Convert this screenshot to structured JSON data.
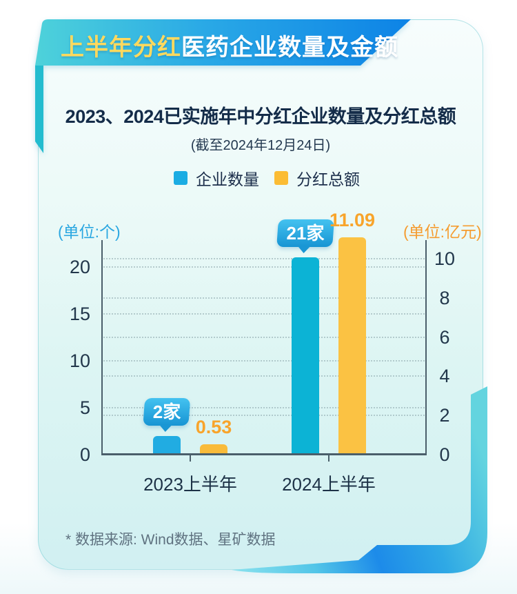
{
  "banner": {
    "highlight": "上半年分红",
    "rest": "医药企业数量及金额"
  },
  "header": {
    "title": "2023、2024已实施年中分红企业数量及分红总额",
    "subtitle": "(截至2024年12月24日)"
  },
  "footnote": {
    "text": "* 数据来源: Wind数据、星矿数据"
  },
  "colors": {
    "banner_gradient_left": "#4ED2DA",
    "banner_gradient_right": "#0D83E6",
    "banner_highlight_text": "#FFD95E",
    "card_background_bottom": "#D1F0F2",
    "axis_line": "#4A5E6A",
    "left_unit_text": "#2AA7E1",
    "right_unit_text": "#F59C30"
  },
  "chart_data": {
    "type": "bar",
    "title": "2023、2024已实施年中分红企业数量及分红总额",
    "subtitle": "(截至2024年12月24日)",
    "categories": [
      "2023上半年",
      "2024上半年"
    ],
    "series": [
      {
        "name": "企业数量",
        "axis": "left",
        "unit": "个",
        "legend_color": "#1BACE3",
        "bar_colors": [
          "#21ACE2",
          "#0CB3D5"
        ],
        "values": [
          2,
          21
        ],
        "data_labels": [
          "2家",
          "21家"
        ],
        "data_label_style": "bubble"
      },
      {
        "name": "分红总额",
        "axis": "right",
        "unit": "亿元",
        "legend_color": "#FBBC34",
        "bar_colors": [
          "#F9BB3A",
          "#FBC243"
        ],
        "values": [
          0.53,
          11.09
        ],
        "data_labels": [
          "0.53",
          "11.09"
        ],
        "data_label_style": "text",
        "data_label_color": "#F8A42B"
      }
    ],
    "left_axis": {
      "unit": "(单位:个)",
      "ticks": [
        0,
        5,
        10,
        15,
        20
      ]
    },
    "right_axis": {
      "unit": "(单位:亿元)",
      "ticks": [
        0,
        2,
        4,
        6,
        8,
        10
      ]
    },
    "grid": "horizontal-dotted",
    "legend_position": "top"
  }
}
